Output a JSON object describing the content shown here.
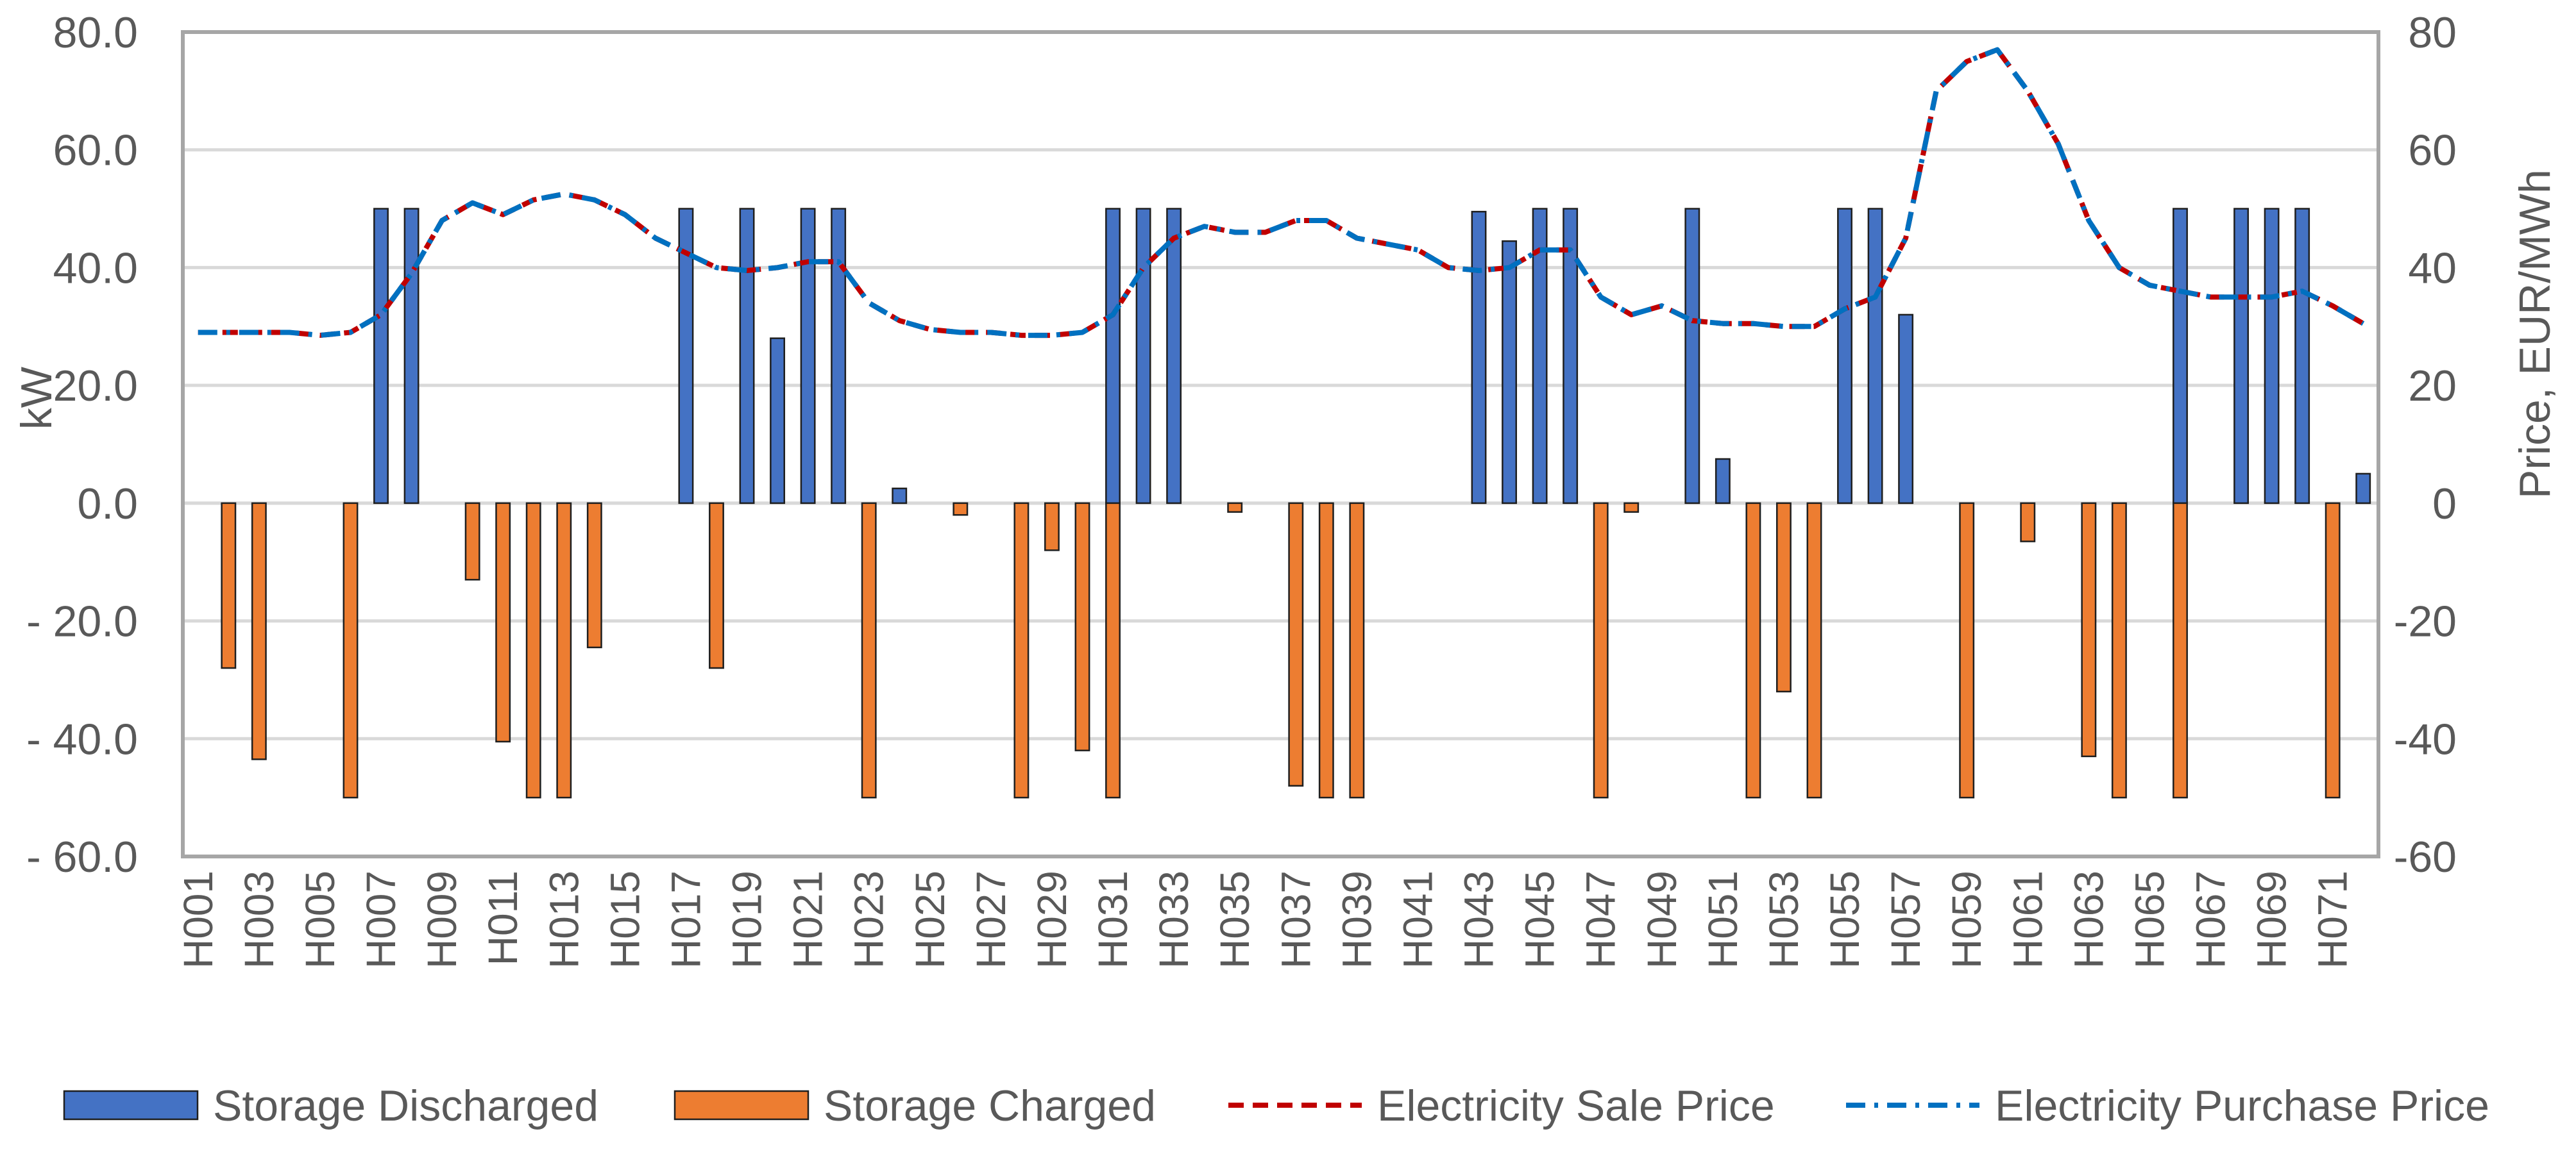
{
  "chart_data": {
    "type": "bar+line",
    "title": "",
    "ylabel_left": "kW",
    "ylabel_right": "Price, EUR/MWh",
    "ylim_left": [
      -60,
      80
    ],
    "ylim_right": [
      -60,
      80
    ],
    "yticks_left": [
      80,
      60,
      40,
      20,
      0,
      -20,
      -40,
      -60
    ],
    "ytick_labels_left": [
      "80.0",
      "60.0",
      "40.0",
      "20.0",
      "0.0",
      "- 20.0",
      "- 40.0",
      "- 60.0"
    ],
    "yticks_right": [
      80,
      60,
      40,
      20,
      0,
      -20,
      -40,
      -60
    ],
    "ytick_labels_right": [
      "80",
      "60",
      "40",
      "20",
      "0",
      "-20",
      "-40",
      "-60"
    ],
    "x_tick_labels": [
      "H001",
      "H003",
      "H005",
      "H007",
      "H009",
      "H011",
      "H013",
      "H015",
      "H017",
      "H019",
      "H021",
      "H023",
      "H025",
      "H027",
      "H029",
      "H031",
      "H033",
      "H035",
      "H037",
      "H039",
      "H041",
      "H043",
      "H045",
      "H047",
      "H049",
      "H051",
      "H053",
      "H055",
      "H057",
      "H059",
      "H061",
      "H063",
      "H065",
      "H067",
      "H069",
      "H071"
    ],
    "hours": 72,
    "series": [
      {
        "name": "Storage Discharged",
        "kind": "bar",
        "axis": "left",
        "color": "#4472C4",
        "values": [
          0,
          0,
          0,
          0,
          0,
          0,
          50,
          50,
          0,
          0,
          0,
          0,
          0,
          0,
          0,
          0,
          50,
          0,
          50,
          28,
          50,
          50,
          0,
          2.5,
          0,
          0,
          0,
          0,
          0,
          0,
          50,
          50,
          50,
          0,
          0,
          0,
          0,
          0,
          0,
          0,
          0,
          0,
          49.5,
          44.5,
          50,
          50,
          0,
          0,
          0,
          50,
          7.5,
          0,
          0,
          0,
          50,
          50,
          32,
          0,
          0,
          0,
          0,
          0,
          0,
          0,
          0,
          50,
          0,
          50,
          50,
          50,
          0,
          5
        ]
      },
      {
        "name": "Storage Charged",
        "kind": "bar",
        "axis": "left",
        "color": "#ED7D31",
        "values": [
          0,
          -28,
          -43.5,
          0,
          0,
          -50,
          0,
          0,
          0,
          -13,
          -40.5,
          -50,
          -50,
          -24.5,
          0,
          0,
          0,
          -28,
          0,
          0,
          0,
          0,
          -50,
          0,
          0,
          -2,
          0,
          -50,
          -8,
          -42,
          -50,
          0,
          0,
          0,
          -1.5,
          0,
          -48,
          -50,
          -50,
          0,
          0,
          0,
          0,
          0,
          0,
          0,
          -50,
          -1.5,
          0,
          0,
          0,
          -50,
          -32,
          -50,
          0,
          0,
          0,
          0,
          -50,
          0,
          -6.5,
          0,
          -43,
          -50,
          0,
          -50,
          0,
          0,
          0,
          0,
          -50,
          0
        ]
      },
      {
        "name": "Electricity Sale Price",
        "kind": "line",
        "style": "dashed",
        "axis": "right",
        "color": "#C00000",
        "values": [
          29,
          29,
          29,
          29,
          28.5,
          29,
          32,
          39,
          48,
          51,
          49,
          51.5,
          52.5,
          51.5,
          49,
          45,
          42.5,
          40,
          39.5,
          40,
          41,
          41,
          34,
          31,
          29.5,
          29,
          29,
          28.5,
          28.5,
          29,
          32,
          40,
          45,
          47,
          46,
          46,
          48,
          48,
          45,
          44,
          43,
          40,
          39.5,
          40,
          43,
          43,
          35,
          32,
          33.5,
          31,
          30.5,
          30.5,
          30,
          30,
          33,
          35,
          45,
          70,
          75,
          77,
          70,
          61,
          48,
          40,
          37,
          36,
          35,
          35,
          35,
          36,
          33.5,
          30.5
        ]
      },
      {
        "name": "Electricity Purchase Price",
        "kind": "line",
        "style": "dash-dot",
        "axis": "right",
        "color": "#0070C0",
        "values": [
          29,
          29,
          29,
          29,
          28.5,
          29,
          32,
          39,
          48,
          51,
          49,
          51.5,
          52.5,
          51.5,
          49,
          45,
          42.5,
          40,
          39.5,
          40,
          41,
          41,
          34,
          31,
          29.5,
          29,
          29,
          28.5,
          28.5,
          29,
          32,
          40,
          45,
          47,
          46,
          46,
          48,
          48,
          45,
          44,
          43,
          40,
          39.5,
          40,
          43,
          43,
          35,
          32,
          33.5,
          31,
          30.5,
          30.5,
          30,
          30,
          33,
          35,
          45,
          70,
          75,
          77,
          70,
          61,
          48,
          40,
          37,
          36,
          35,
          35,
          35,
          36,
          33.5,
          30.5
        ]
      }
    ],
    "legend_position": "bottom",
    "gridlines": true
  },
  "legend": {
    "items": [
      {
        "label": "Storage Discharged"
      },
      {
        "label": "Storage Charged"
      },
      {
        "label": "Electricity Sale Price"
      },
      {
        "label": "Electricity Purchase Price"
      }
    ]
  }
}
